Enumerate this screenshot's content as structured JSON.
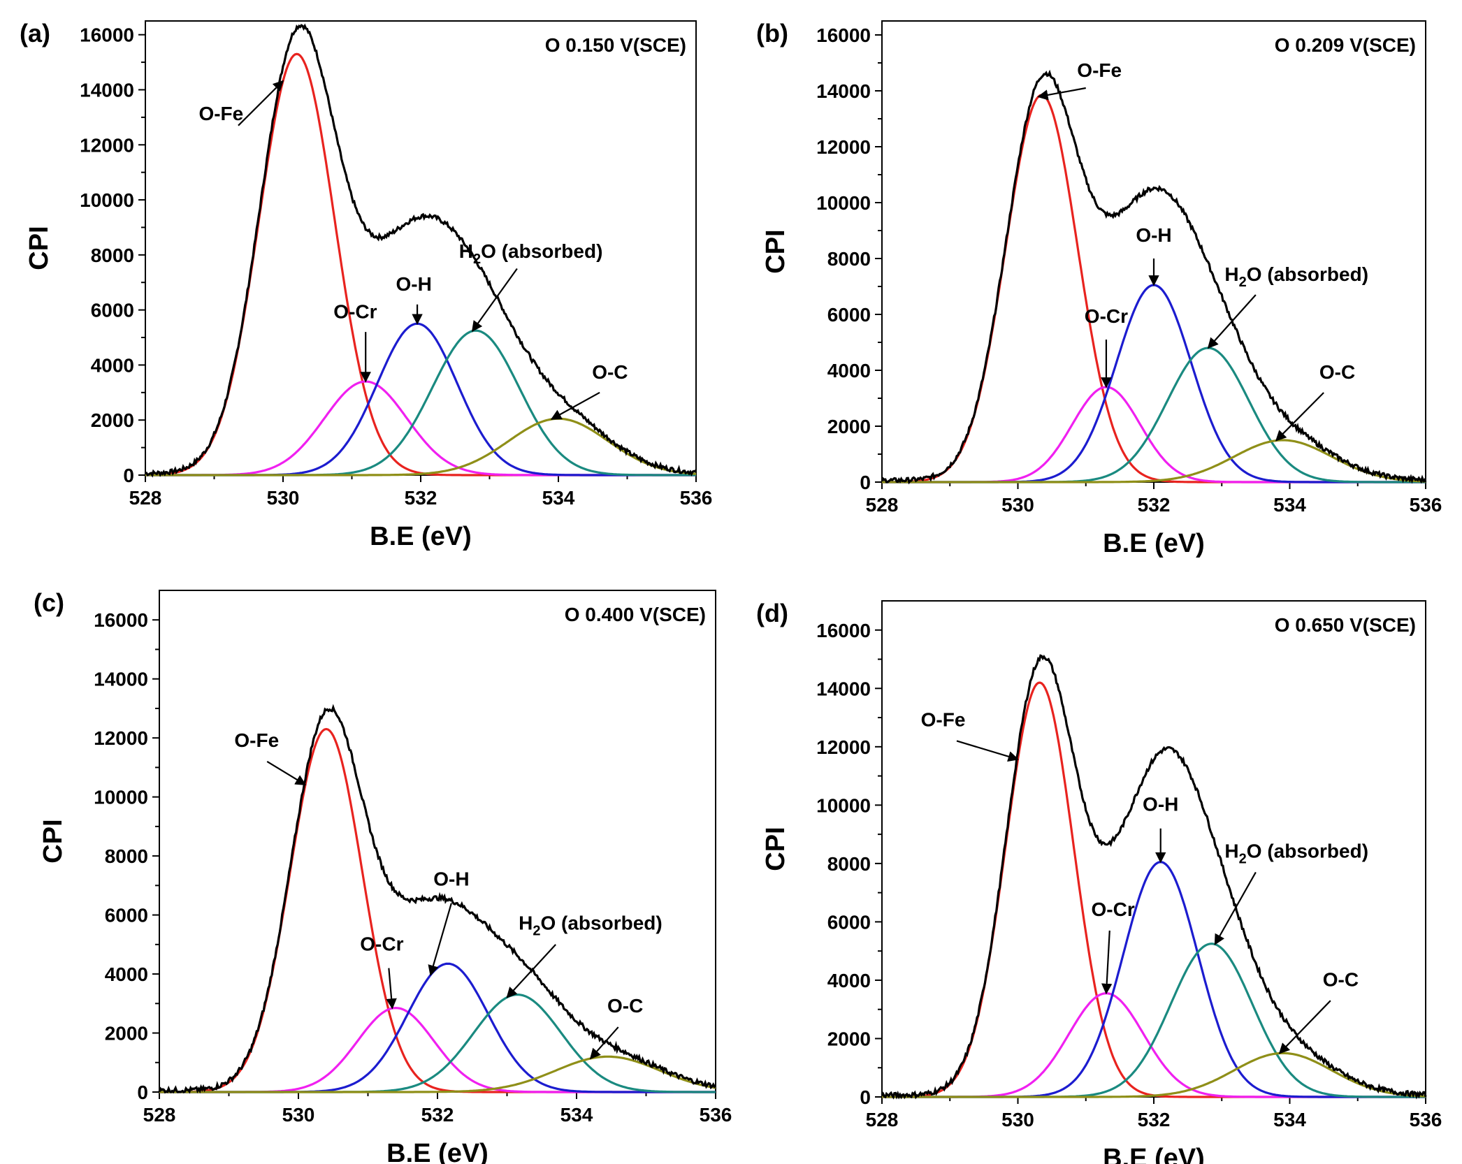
{
  "figure": {
    "colors": {
      "envelope": "#000000",
      "O-Fe": "#e8231f",
      "O-Cr": "#f020f0",
      "O-H": "#1c1ccf",
      "H2O": "#1a8a80",
      "O-C": "#8f8f18"
    },
    "peak_text": {
      "ofe": "O-Fe",
      "ocr": "O-Cr",
      "oh": "O-H",
      "h2o_prefix": "H",
      "h2o_sub": "2",
      "h2o_suffix": "O (absorbed)",
      "oc": "O-C"
    }
  },
  "chart_data": [
    {
      "id": "a",
      "type": "line",
      "panel_label": "(a)",
      "condition": "O 0.150 V(SCE)",
      "xlabel": "B.E (eV)",
      "ylabel": "CPI",
      "xlim": [
        528,
        536
      ],
      "ylim": [
        0,
        16500
      ],
      "xticks": [
        "528",
        "530",
        "532",
        "534",
        "536"
      ],
      "yticks": [
        "0",
        "2000",
        "4000",
        "6000",
        "8000",
        "10000",
        "12000",
        "14000",
        "16000"
      ],
      "series": [
        {
          "name": "O-Fe",
          "center": 530.2,
          "height": 15300,
          "sigma": 0.55
        },
        {
          "name": "O-Cr",
          "center": 531.2,
          "height": 3400,
          "sigma": 0.6
        },
        {
          "name": "O-H",
          "center": 531.95,
          "height": 5500,
          "sigma": 0.58
        },
        {
          "name": "H2O (absorbed)",
          "center": 532.8,
          "height": 5250,
          "sigma": 0.63
        },
        {
          "name": "O-C",
          "center": 534.0,
          "height": 2050,
          "sigma": 0.72
        }
      ]
    },
    {
      "id": "b",
      "type": "line",
      "panel_label": "(b)",
      "condition": "O 0.209 V(SCE)",
      "xlabel": "B.E (eV)",
      "ylabel": "CPI",
      "xlim": [
        528,
        536
      ],
      "ylim": [
        0,
        16500
      ],
      "xticks": [
        "528",
        "530",
        "532",
        "534",
        "536"
      ],
      "yticks": [
        "0",
        "2000",
        "4000",
        "6000",
        "8000",
        "10000",
        "12000",
        "14000",
        "16000"
      ],
      "series": [
        {
          "name": "O-Fe",
          "center": 530.35,
          "height": 13850,
          "sigma": 0.53
        },
        {
          "name": "O-Cr",
          "center": 531.3,
          "height": 3400,
          "sigma": 0.5
        },
        {
          "name": "O-H",
          "center": 532.0,
          "height": 7050,
          "sigma": 0.55
        },
        {
          "name": "H2O (absorbed)",
          "center": 532.8,
          "height": 4800,
          "sigma": 0.6
        },
        {
          "name": "O-C",
          "center": 533.9,
          "height": 1500,
          "sigma": 0.72
        }
      ]
    },
    {
      "id": "c",
      "type": "line",
      "panel_label": "(c)",
      "condition": "O 0.400 V(SCE)",
      "xlabel": "B.E (eV)",
      "ylabel": "CPI",
      "xlim": [
        528,
        536
      ],
      "ylim": [
        0,
        17000
      ],
      "xticks": [
        "528",
        "530",
        "532",
        "534",
        "536"
      ],
      "yticks": [
        "0",
        "2000",
        "4000",
        "6000",
        "8000",
        "10000",
        "12000",
        "14000",
        "16000"
      ],
      "series": [
        {
          "name": "O-Fe",
          "center": 530.4,
          "height": 12300,
          "sigma": 0.52
        },
        {
          "name": "O-Cr",
          "center": 531.4,
          "height": 2850,
          "sigma": 0.55
        },
        {
          "name": "O-H",
          "center": 532.15,
          "height": 4350,
          "sigma": 0.58
        },
        {
          "name": "H2O (absorbed)",
          "center": 533.15,
          "height": 3300,
          "sigma": 0.63
        },
        {
          "name": "O-C",
          "center": 534.45,
          "height": 1200,
          "sigma": 0.75
        }
      ]
    },
    {
      "id": "d",
      "type": "line",
      "panel_label": "(d)",
      "condition": "O 0.650 V(SCE)",
      "xlabel": "B.E (eV)",
      "ylabel": "CPI",
      "xlim": [
        528,
        536
      ],
      "ylim": [
        0,
        17000
      ],
      "xticks": [
        "528",
        "530",
        "532",
        "534",
        "536"
      ],
      "yticks": [
        "0",
        "2000",
        "4000",
        "6000",
        "8000",
        "10000",
        "12000",
        "14000",
        "16000"
      ],
      "series": [
        {
          "name": "O-Fe",
          "center": 530.32,
          "height": 14200,
          "sigma": 0.5
        },
        {
          "name": "O-Cr",
          "center": 531.3,
          "height": 3550,
          "sigma": 0.55
        },
        {
          "name": "O-H",
          "center": 532.1,
          "height": 8050,
          "sigma": 0.55
        },
        {
          "name": "H2O (absorbed)",
          "center": 532.85,
          "height": 5250,
          "sigma": 0.6
        },
        {
          "name": "O-C",
          "center": 533.9,
          "height": 1500,
          "sigma": 0.72
        }
      ]
    }
  ]
}
